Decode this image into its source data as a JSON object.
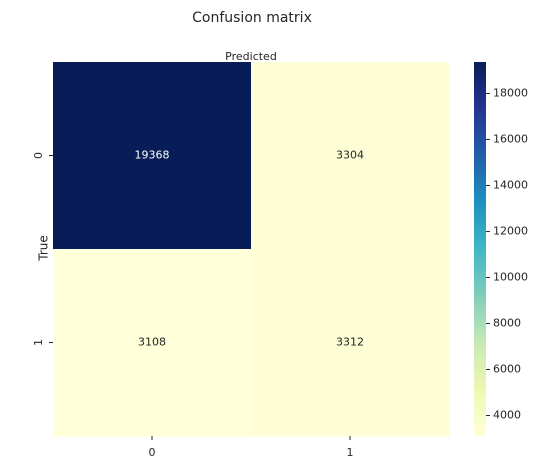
{
  "chart_data": {
    "type": "heatmap",
    "title": "Confusion matrix",
    "x_label": "Predicted",
    "y_label": "True",
    "x_categories": [
      "0",
      "1"
    ],
    "y_categories": [
      "0",
      "1"
    ],
    "values": [
      [
        19368,
        3304
      ],
      [
        3108,
        3312
      ]
    ],
    "clim": [
      3108,
      19368
    ],
    "colorbar_ticks": [
      4000,
      6000,
      8000,
      10000,
      12000,
      14000,
      16000,
      18000
    ],
    "colorscale": [
      "#ffffd9",
      "#edf8b1",
      "#c7e9b4",
      "#7fcdbb",
      "#41b6c4",
      "#1d91c0",
      "#225ea8",
      "#253494",
      "#081d58"
    ]
  }
}
